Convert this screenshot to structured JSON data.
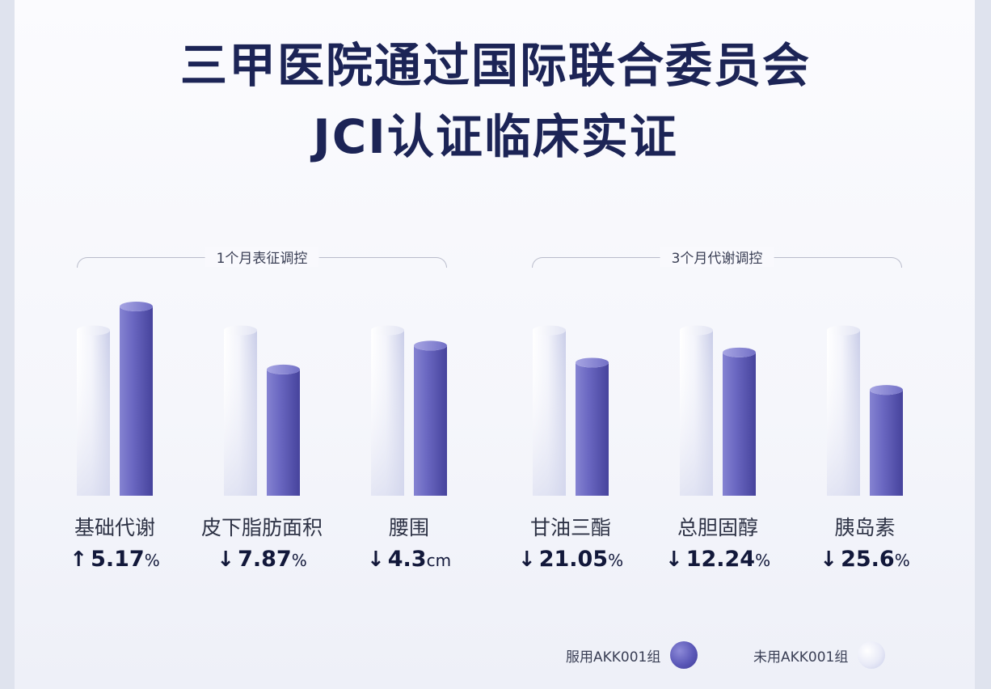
{
  "title_line1": "三甲医院通过国际联合委员会",
  "title_line2": "JCI认证临床实证",
  "sections": [
    {
      "label": "1个月表征调控"
    },
    {
      "label": "3个月代谢调控"
    }
  ],
  "legend": {
    "used": "服用AKK001组",
    "unused": "未用AKK001组"
  },
  "colors": {
    "used": "#5e5bb9",
    "unused": "#e9ebf7",
    "title": "#1c2456"
  },
  "chart_data": {
    "type": "bar",
    "categories": [
      "基础代谢",
      "皮下脂肪面积",
      "腰围",
      "甘油三酯",
      "总胆固醇",
      "胰岛素"
    ],
    "series": [
      {
        "name": "未用AKK001组",
        "values": [
          100,
          100,
          100,
          100,
          100,
          100
        ]
      },
      {
        "name": "服用AKK001组",
        "values": [
          114,
          77,
          91,
          81,
          87,
          65
        ]
      }
    ],
    "changes": [
      {
        "arrow": "↑",
        "value": "5.17",
        "unit": "%"
      },
      {
        "arrow": "↓",
        "value": "7.87",
        "unit": "%"
      },
      {
        "arrow": "↓",
        "value": "4.3",
        "unit": "cm"
      },
      {
        "arrow": "↓",
        "value": "21.05",
        "unit": "%"
      },
      {
        "arrow": "↓",
        "value": "12.24",
        "unit": "%"
      },
      {
        "arrow": "↓",
        "value": "25.6",
        "unit": "%"
      }
    ],
    "ylim": [
      0,
      114
    ]
  }
}
